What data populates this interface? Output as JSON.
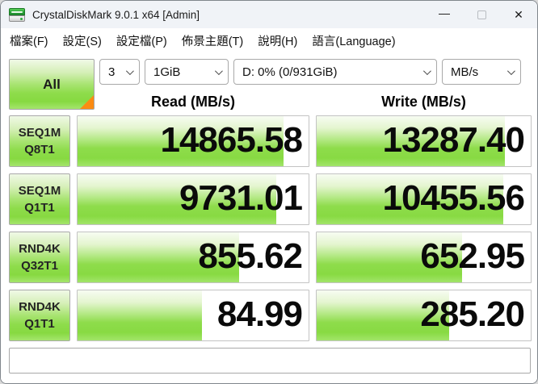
{
  "window": {
    "title": "CrystalDiskMark 9.0.1 x64 [Admin]",
    "minimize_glyph": "—",
    "close_glyph": "✕"
  },
  "menu_bar": {
    "items": [
      "檔案(F)",
      "設定(S)",
      "設定檔(P)",
      "佈景主題(T)",
      "說明(H)",
      "語言(Language)"
    ]
  },
  "toolbar": {
    "all_button_label": "All",
    "test_count": "3",
    "test_size": "1GiB",
    "target_drive": "D: 0% (0/931GiB)",
    "unit": "MB/s"
  },
  "results": {
    "read_header": "Read (MB/s)",
    "write_header": "Write (MB/s)",
    "rows": [
      {
        "test": "SEQ1M",
        "queue_thread": "Q8T1",
        "read": "14865.58",
        "write": "13287.40",
        "read_fill_pct": 89,
        "write_fill_pct": 88
      },
      {
        "test": "SEQ1M",
        "queue_thread": "Q1T1",
        "read": "9731.01",
        "write": "10455.56",
        "read_fill_pct": 86,
        "write_fill_pct": 87
      },
      {
        "test": "RND4K",
        "queue_thread": "Q32T1",
        "read": "855.62",
        "write": "652.95",
        "read_fill_pct": 70,
        "write_fill_pct": 68
      },
      {
        "test": "RND4K",
        "queue_thread": "Q1T1",
        "read": "84.99",
        "write": "285.20",
        "read_fill_pct": 54,
        "write_fill_pct": 62
      }
    ]
  },
  "comment_box": {
    "value": ""
  },
  "colors": {
    "bar_green": "#8edc4b",
    "accent_orange": "#fb8b12",
    "titlebar_bg": "#f0f3f7"
  }
}
